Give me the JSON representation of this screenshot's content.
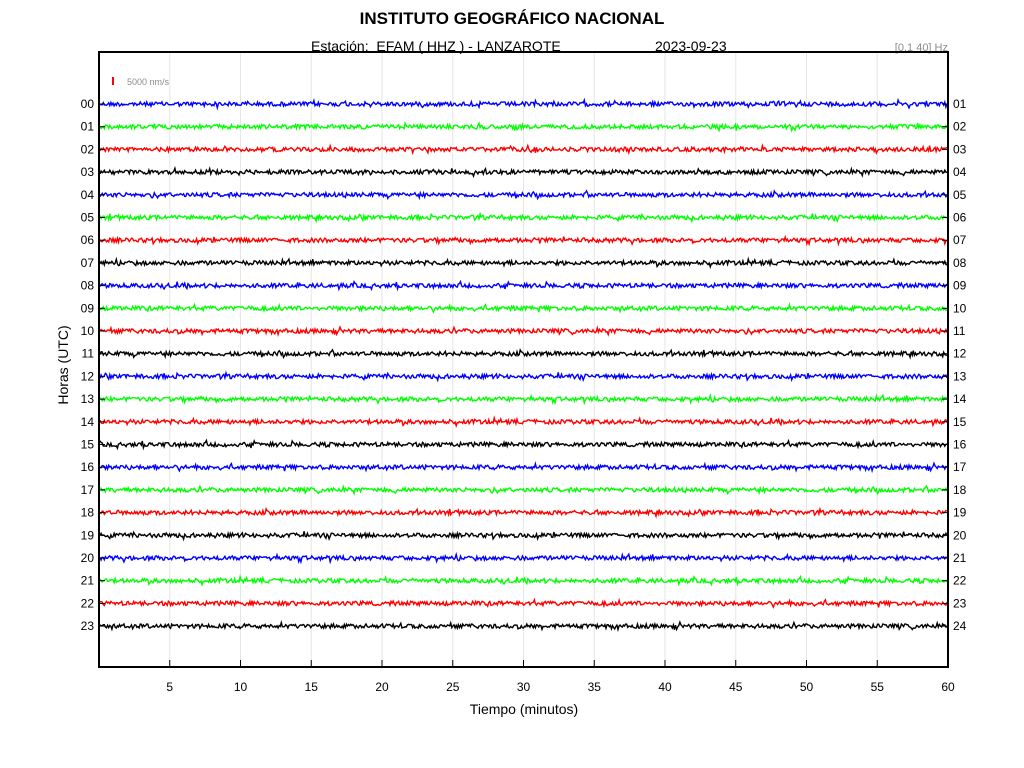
{
  "chart_data": {
    "type": "line",
    "title": "INSTITUTO GEOGRÁFICO NACIONAL",
    "subtitle": "Estación:  EFAM ( HHZ ) - LANZAROTE",
    "date": "2023-09-23",
    "filter_band": "[0.1 40] Hz",
    "scale_label": "5000 nm/s",
    "xlabel": "Tiempo (minutos)",
    "ylabel": "Horas (UTC)",
    "xlim": [
      0,
      60
    ],
    "x_ticks": [
      5,
      10,
      15,
      20,
      25,
      30,
      35,
      40,
      45,
      50,
      55,
      60
    ],
    "grid": true,
    "trace_colors": [
      "#0000ff",
      "#00ff00",
      "#ff0000",
      "#000000"
    ],
    "scale_color": "#ff0000",
    "series": [
      {
        "left": "00",
        "right": "01"
      },
      {
        "left": "01",
        "right": "02"
      },
      {
        "left": "02",
        "right": "03"
      },
      {
        "left": "03",
        "right": "04"
      },
      {
        "left": "04",
        "right": "05"
      },
      {
        "left": "05",
        "right": "06"
      },
      {
        "left": "06",
        "right": "07"
      },
      {
        "left": "07",
        "right": "08"
      },
      {
        "left": "08",
        "right": "09"
      },
      {
        "left": "09",
        "right": "10"
      },
      {
        "left": "10",
        "right": "11"
      },
      {
        "left": "11",
        "right": "12"
      },
      {
        "left": "12",
        "right": "13"
      },
      {
        "left": "13",
        "right": "14"
      },
      {
        "left": "14",
        "right": "15"
      },
      {
        "left": "15",
        "right": "16"
      },
      {
        "left": "16",
        "right": "17"
      },
      {
        "left": "17",
        "right": "18"
      },
      {
        "left": "18",
        "right": "19"
      },
      {
        "left": "19",
        "right": "20"
      },
      {
        "left": "20",
        "right": "21"
      },
      {
        "left": "21",
        "right": "22"
      },
      {
        "left": "22",
        "right": "23"
      },
      {
        "left": "23",
        "right": "24"
      }
    ]
  }
}
